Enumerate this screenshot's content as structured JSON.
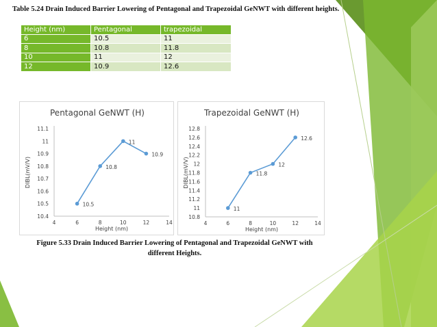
{
  "table_caption": "Table 5.24 Drain Induced Barrier Lowering of Pentagonal and Trapezoidal GeNWT with different heights.",
  "table": {
    "headers": [
      "Height (nm)",
      "Pentagonal",
      "trapezoidal"
    ],
    "rows": [
      [
        "6",
        "10.5",
        "11"
      ],
      [
        "8",
        "10.8",
        "11.8"
      ],
      [
        "10",
        "11",
        "12"
      ],
      [
        "12",
        "10.9",
        "12.6"
      ]
    ]
  },
  "figure_caption_line1": "Figure 5.33 Drain Induced Barrier Lowering of Pentagonal and Trapezoidal GeNWT with",
  "figure_caption_line2": "different Heights.",
  "colors": {
    "series": "#5b9bd5",
    "table_header": "#76b82a",
    "green_dark": "#5a8f1a",
    "green_light": "#a8d44a"
  },
  "chart_data": [
    {
      "type": "line",
      "title": "Pentagonal GeNWT (H)",
      "xlabel": "Height (nm)",
      "ylabel": "DIBL(mV/V)",
      "xlim": [
        4,
        14
      ],
      "xticks": [
        "4",
        "6",
        "8",
        "10",
        "12",
        "14"
      ],
      "ylim": [
        10.4,
        11.1
      ],
      "yticks": [
        "10.4",
        "10.5",
        "10.6",
        "10.7",
        "10.8",
        "10.9",
        "11",
        "11.1"
      ],
      "grid": false,
      "legend": "none",
      "x": [
        6,
        8,
        10,
        12
      ],
      "y": [
        10.5,
        10.8,
        11,
        10.9
      ],
      "labels": [
        "10.5",
        "10.8",
        "11",
        "10.9"
      ]
    },
    {
      "type": "line",
      "title": "Trapezoidal GeNWT (H)",
      "xlabel": "Height (nm)",
      "ylabel": "DIBL(mV/V)",
      "xlim": [
        4,
        14
      ],
      "xticks": [
        "4",
        "6",
        "8",
        "10",
        "12",
        "14"
      ],
      "ylim": [
        10.8,
        12.8
      ],
      "yticks": [
        "10.8",
        "11",
        "11.2",
        "11.4",
        "11.6",
        "11.8",
        "12",
        "12.2",
        "12.4",
        "12.6",
        "12.8"
      ],
      "grid": false,
      "legend": "none",
      "x": [
        6,
        8,
        10,
        12
      ],
      "y": [
        11,
        11.8,
        12,
        12.6
      ],
      "labels": [
        "11",
        "11.8",
        "12",
        "12.6"
      ]
    }
  ]
}
